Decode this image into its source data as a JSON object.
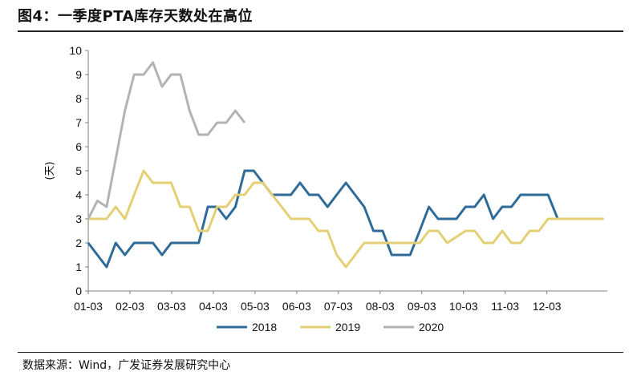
{
  "header": {
    "title": "图4：一季度PTA库存天数处在高位"
  },
  "footer": {
    "source": "数据来源：Wind，广发证券发展研究中心"
  },
  "colors": {
    "2018": "#2e6b99",
    "2019": "#e3cf74",
    "2020": "#b3b3b3",
    "axis": "#7f7f7f"
  },
  "chart_data": {
    "type": "line",
    "title": "一季度PTA库存天数处在高位",
    "ylabel": "(天)",
    "xlabel": "",
    "ylim": [
      0,
      10
    ],
    "yticks": [
      0,
      1,
      2,
      3,
      4,
      5,
      6,
      7,
      8,
      9,
      10
    ],
    "xlim": [
      0,
      12.45
    ],
    "xticks": [
      {
        "label": "01-03",
        "x": 0
      },
      {
        "label": "02-03",
        "x": 1
      },
      {
        "label": "03-03",
        "x": 2
      },
      {
        "label": "04-03",
        "x": 3
      },
      {
        "label": "05-03",
        "x": 4
      },
      {
        "label": "06-03",
        "x": 5
      },
      {
        "label": "07-03",
        "x": 6
      },
      {
        "label": "08-03",
        "x": 7
      },
      {
        "label": "09-03",
        "x": 8
      },
      {
        "label": "10-03",
        "x": 9
      },
      {
        "label": "11-03",
        "x": 10
      },
      {
        "label": "12-03",
        "x": 11
      }
    ],
    "x_unit": "months since 01-03",
    "legend": [
      "2018",
      "2019",
      "2020"
    ],
    "legend_position": "bottom",
    "grid": false,
    "series": [
      {
        "name": "2018",
        "x": [
          0,
          0.22,
          0.44,
          0.66,
          0.88,
          1.1,
          1.33,
          1.55,
          1.77,
          1.99,
          2.21,
          2.43,
          2.65,
          2.87,
          3.09,
          3.31,
          3.53,
          3.75,
          3.97,
          4.19,
          4.41,
          4.64,
          4.86,
          5.08,
          5.3,
          5.52,
          5.74,
          5.96,
          6.18,
          6.4,
          6.62,
          6.84,
          7.06,
          7.28,
          7.5,
          7.72,
          7.95,
          8.17,
          8.39,
          8.61,
          8.83,
          9.05,
          9.27,
          9.49,
          9.71,
          9.93,
          10.15,
          10.37,
          10.59,
          10.81,
          11.03,
          11.26,
          11.48,
          11.7,
          11.92,
          12.14,
          12.36
        ],
        "values": [
          2,
          1.5,
          1,
          2,
          1.5,
          2,
          2,
          2,
          1.5,
          2,
          2,
          2,
          2,
          3.5,
          3.5,
          3,
          3.5,
          5,
          5,
          4.5,
          4,
          4,
          4,
          4.5,
          4,
          4,
          3.5,
          4,
          4.5,
          4,
          3.5,
          2.5,
          2.5,
          1.5,
          1.5,
          1.5,
          2.5,
          3.5,
          3,
          3,
          3,
          3.5,
          3.5,
          4,
          3,
          3.5,
          3.5,
          4,
          4,
          4,
          4,
          3,
          3,
          3,
          3,
          3,
          3
        ]
      },
      {
        "name": "2019",
        "x": [
          0,
          0.22,
          0.44,
          0.66,
          0.88,
          1.1,
          1.33,
          1.55,
          1.77,
          1.99,
          2.21,
          2.43,
          2.65,
          2.87,
          3.09,
          3.31,
          3.53,
          3.75,
          3.97,
          4.19,
          4.41,
          4.64,
          4.86,
          5.08,
          5.3,
          5.52,
          5.74,
          5.96,
          6.18,
          6.4,
          6.62,
          6.84,
          7.06,
          7.28,
          7.5,
          7.72,
          7.95,
          8.17,
          8.39,
          8.61,
          8.83,
          9.05,
          9.27,
          9.49,
          9.71,
          9.93,
          10.15,
          10.37,
          10.59,
          10.81,
          11.03,
          11.26,
          11.48,
          11.7,
          11.92,
          12.14,
          12.36
        ],
        "values": [
          3,
          3,
          3,
          3.5,
          3,
          4,
          5,
          4.5,
          4.5,
          4.5,
          3.5,
          3.5,
          2.5,
          2.5,
          3.5,
          3.5,
          4,
          4,
          4.5,
          4.5,
          4,
          3.5,
          3,
          3,
          3,
          2.5,
          2.5,
          1.5,
          1,
          1.5,
          2,
          2,
          2,
          2,
          2,
          2,
          2,
          2.5,
          2.5,
          2,
          2.25,
          2.5,
          2.5,
          2,
          2,
          2.5,
          2,
          2,
          2.5,
          2.5,
          3,
          3,
          3,
          3,
          3,
          3,
          3
        ]
      },
      {
        "name": "2020",
        "x": [
          0,
          0.22,
          0.44,
          0.66,
          0.88,
          1.1,
          1.33,
          1.55,
          1.77,
          1.99,
          2.21,
          2.43,
          2.65,
          2.87,
          3.09,
          3.31,
          3.53,
          3.75
        ],
        "values": [
          3,
          3.75,
          3.5,
          5.5,
          7.5,
          9,
          9,
          9.5,
          8.5,
          9,
          9,
          7.5,
          6.5,
          6.5,
          7,
          7,
          7.5,
          7
        ]
      }
    ]
  }
}
